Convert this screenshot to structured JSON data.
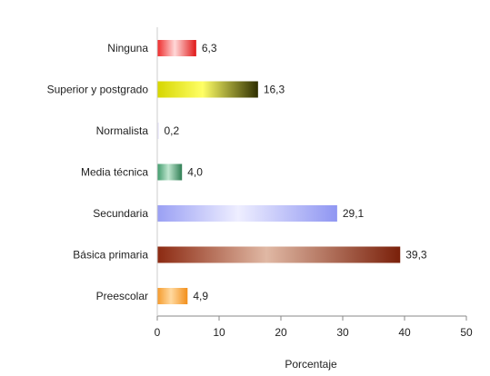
{
  "chart_data": {
    "type": "bar",
    "orientation": "horizontal",
    "categories": [
      "Ninguna",
      "Superior y postgrado",
      "Normalista",
      "Media técnica",
      "Secundaria",
      "Básica primaria",
      "Preescolar"
    ],
    "values": [
      6.3,
      16.3,
      0.2,
      4.0,
      29.1,
      39.3,
      4.9
    ],
    "value_labels": [
      "6,3",
      "16,3",
      "0,2",
      "4,0",
      "29,1",
      "39,3",
      "4,9"
    ],
    "bar_colors": [
      "#ee2a2a",
      "#d6d600",
      "#c8c0ee",
      "#3e9a6a",
      "#9aa0f4",
      "#8c2a12",
      "#f59a2a"
    ],
    "bar_highlight": [
      "#ffd8d8",
      "#ffff66",
      "#f0ecff",
      "#bfe6cf",
      "#eeeeff",
      "#e0b8a4",
      "#ffd9a0"
    ],
    "bar_dark": [
      "#e01818",
      "#2e2e00",
      "#d6d0f4",
      "#2f7e54",
      "#8f96f2",
      "#7a200a",
      "#f28f1a"
    ],
    "title": "",
    "xlabel": "Porcentaje",
    "ylabel": "",
    "xlim": [
      0,
      50
    ],
    "xticks": [
      0,
      10,
      20,
      30,
      40,
      50
    ],
    "xtick_labels": [
      "0",
      "10",
      "20",
      "30",
      "40",
      "50"
    ],
    "grid": false,
    "legend": "none"
  }
}
